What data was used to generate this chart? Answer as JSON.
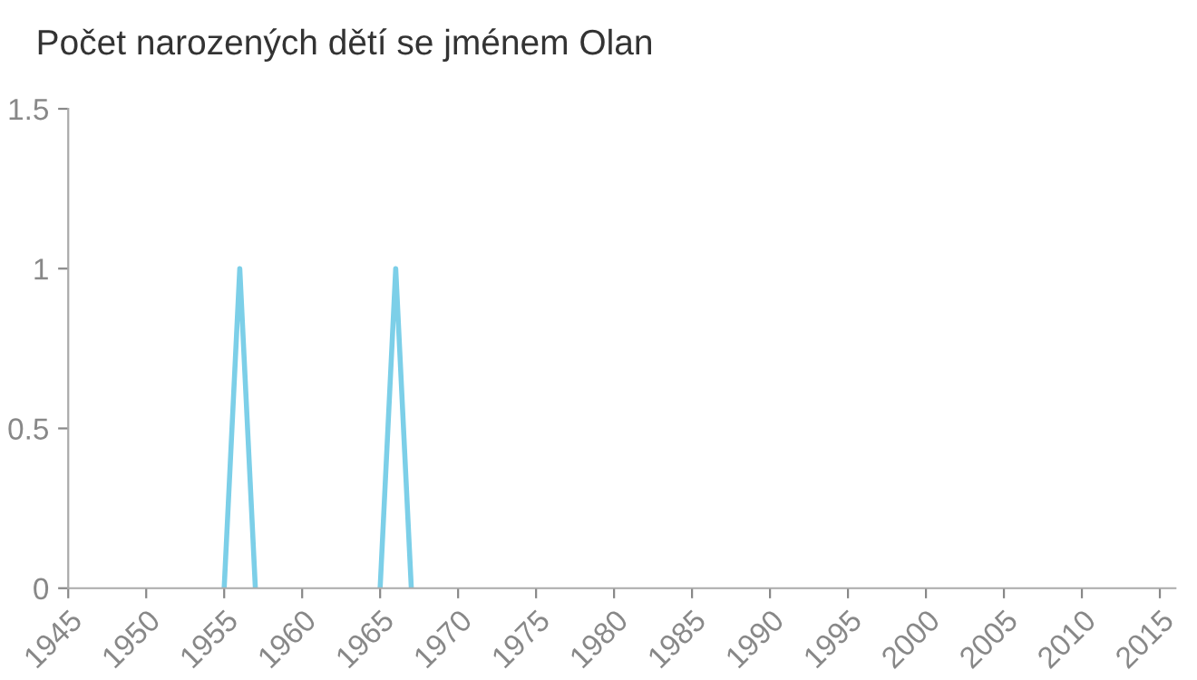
{
  "chart_data": {
    "type": "line",
    "title": "Počet narozených dětí se jménem Olan",
    "x": [
      1955,
      1956,
      1957,
      1961,
      1965,
      1966,
      1967
    ],
    "series": [
      {
        "color": "#7ccfe8",
        "values": [
          0,
          1,
          0,
          null,
          0,
          1,
          0
        ]
      }
    ],
    "xlim": [
      1945,
      2016
    ],
    "xticks": [
      1945,
      1950,
      1955,
      1960,
      1965,
      1970,
      1975,
      1980,
      1985,
      1990,
      1995,
      2000,
      2005,
      2010,
      2015
    ],
    "ylim": [
      0,
      1.5
    ],
    "yticks": [
      0,
      0.5,
      1,
      1.5
    ],
    "grid": false,
    "legend": false
  }
}
